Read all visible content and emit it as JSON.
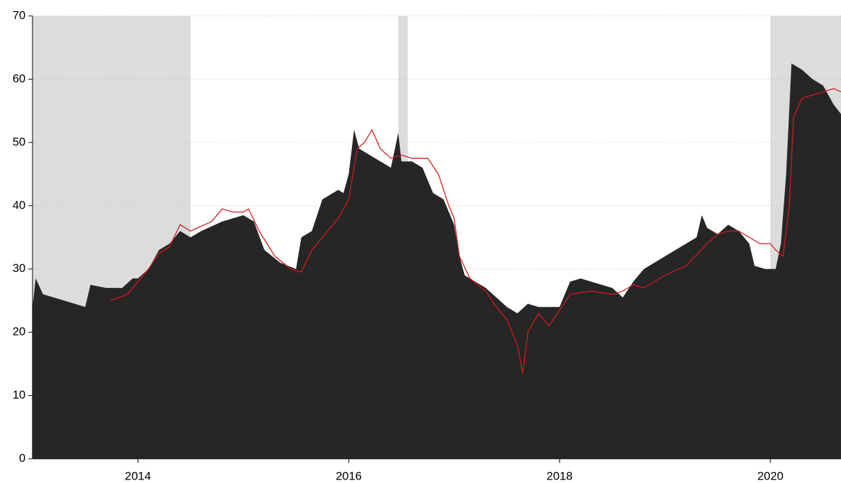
{
  "chart_data": {
    "type": "area_line",
    "xlim": [
      2013,
      2020.67
    ],
    "xticks": [
      2014,
      2016,
      2018,
      2020
    ],
    "ylim": [
      0,
      70
    ],
    "yticks": [
      0,
      10,
      20,
      30,
      40,
      50,
      60,
      70
    ],
    "grid": true,
    "shaded_regions": [
      [
        2013,
        2014.5
      ],
      [
        2016.47,
        2016.56
      ],
      [
        2020.0,
        2020.67
      ]
    ],
    "shade_color": "#dcdcdc",
    "series": [
      {
        "kind": "area",
        "color": "#262626",
        "x": [
          2013.0,
          2013.03,
          2013.1,
          2013.3,
          2013.5,
          2013.55,
          2013.7,
          2013.85,
          2013.95,
          2014.0,
          2014.1,
          2014.2,
          2014.3,
          2014.4,
          2014.5,
          2014.6,
          2014.8,
          2015.0,
          2015.1,
          2015.2,
          2015.35,
          2015.5,
          2015.55,
          2015.65,
          2015.75,
          2015.9,
          2015.95,
          2016.0,
          2016.05,
          2016.1,
          2016.2,
          2016.3,
          2016.4,
          2016.47,
          2016.5,
          2016.6,
          2016.7,
          2016.8,
          2016.9,
          2017.0,
          2017.05,
          2017.1,
          2017.3,
          2017.5,
          2017.6,
          2017.7,
          2017.8,
          2018.0,
          2018.1,
          2018.2,
          2018.3,
          2018.5,
          2018.6,
          2018.7,
          2018.8,
          2018.9,
          2019.0,
          2019.1,
          2019.2,
          2019.3,
          2019.35,
          2019.4,
          2019.5,
          2019.6,
          2019.7,
          2019.8,
          2019.85,
          2019.95,
          2020.05,
          2020.1,
          2020.15,
          2020.2,
          2020.3,
          2020.4,
          2020.5,
          2020.6,
          2020.67
        ],
        "values": [
          24,
          28.5,
          26,
          25,
          24,
          27.5,
          27,
          27,
          28.5,
          28.5,
          30,
          33,
          34,
          36,
          35,
          36,
          37.5,
          38.5,
          37.5,
          33,
          31,
          30,
          35,
          36,
          41,
          42.5,
          42,
          45,
          52,
          49,
          48,
          47,
          46,
          51.5,
          47,
          47,
          46,
          42,
          41,
          37,
          32,
          29,
          27,
          24,
          23,
          24.5,
          24,
          24,
          28,
          28.5,
          28,
          27,
          25.5,
          28,
          30,
          31,
          32,
          33,
          34,
          35,
          38.5,
          36.5,
          35.5,
          37,
          36,
          34,
          30.5,
          30,
          30,
          34,
          45,
          62.5,
          61.5,
          60,
          59,
          56,
          54.5
        ]
      },
      {
        "kind": "line",
        "color": "#d7191c",
        "x": [
          2013.74,
          2013.9,
          2014.0,
          2014.1,
          2014.2,
          2014.3,
          2014.4,
          2014.5,
          2014.7,
          2014.8,
          2014.9,
          2015.0,
          2015.05,
          2015.15,
          2015.3,
          2015.45,
          2015.55,
          2015.65,
          2015.75,
          2015.9,
          2016.0,
          2016.08,
          2016.15,
          2016.22,
          2016.3,
          2016.4,
          2016.5,
          2016.6,
          2016.75,
          2016.85,
          2016.95,
          2017.0,
          2017.05,
          2017.15,
          2017.3,
          2017.4,
          2017.5,
          2017.6,
          2017.65,
          2017.7,
          2017.8,
          2017.9,
          2018.0,
          2018.1,
          2018.3,
          2018.5,
          2018.6,
          2018.7,
          2018.8,
          2018.9,
          2019.0,
          2019.2,
          2019.4,
          2019.5,
          2019.6,
          2019.7,
          2019.8,
          2019.9,
          2020.0,
          2020.05,
          2020.12,
          2020.18,
          2020.22,
          2020.3,
          2020.4,
          2020.5,
          2020.6,
          2020.67
        ],
        "values": [
          25,
          26,
          28,
          30,
          32.5,
          33.5,
          37,
          36,
          37.5,
          39.5,
          39,
          39,
          39.5,
          36,
          32,
          30,
          29.5,
          33,
          35,
          38,
          41,
          49,
          50,
          52,
          49,
          47.5,
          48,
          47.5,
          47.5,
          45,
          40,
          38,
          32,
          28.5,
          26.5,
          24,
          22,
          18,
          13.5,
          20,
          23,
          21,
          23.5,
          26,
          26.5,
          26,
          26.5,
          27.5,
          27,
          28,
          29,
          30.5,
          34,
          35.5,
          36,
          36,
          35,
          34,
          34,
          33,
          32,
          40,
          54,
          57,
          57.5,
          58,
          58.5,
          58
        ]
      }
    ]
  }
}
